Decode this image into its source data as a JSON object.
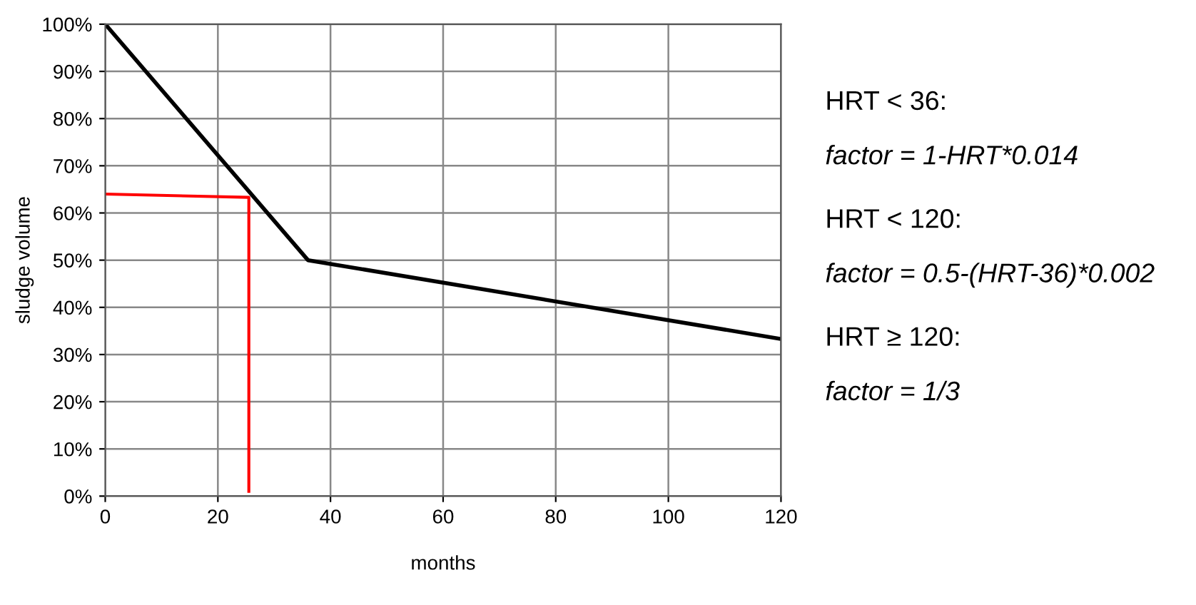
{
  "chart_data": {
    "type": "line",
    "xlabel": "months",
    "ylabel": "sludge volume",
    "series": [
      {
        "color": "#000000",
        "x": [
          0,
          36,
          120
        ],
        "values": [
          100,
          50,
          33.3
        ]
      },
      {
        "color": "#ff0000",
        "x": [
          0,
          25.5,
          25.5
        ],
        "values": [
          64,
          63.3,
          1
        ]
      }
    ],
    "xlim": [
      0,
      120
    ],
    "xticks": [
      0,
      20,
      40,
      60,
      80,
      100,
      120
    ],
    "ylim": [
      0,
      100
    ],
    "yticks": [
      {
        "value": 0,
        "label": "0%"
      },
      {
        "value": 10,
        "label": "10%"
      },
      {
        "value": 20,
        "label": "20%"
      },
      {
        "value": 30,
        "label": "30%"
      },
      {
        "value": 40,
        "label": "40%"
      },
      {
        "value": 50,
        "label": "50%"
      },
      {
        "value": 60,
        "label": "60%"
      },
      {
        "value": 70,
        "label": "70%"
      },
      {
        "value": 80,
        "label": "80%"
      },
      {
        "value": 90,
        "label": "90%"
      },
      {
        "value": 100,
        "label": "100%"
      }
    ],
    "grid": true,
    "marker": "none",
    "line_style": "solid",
    "annotations": [
      "HRT < 36:",
      "factor = 1-HRT*0.014",
      "HRT < 120:",
      "factor = 0.5-(HRT-36)*0.002",
      "HRT ≥ 120:",
      "factor = 1/3"
    ]
  }
}
